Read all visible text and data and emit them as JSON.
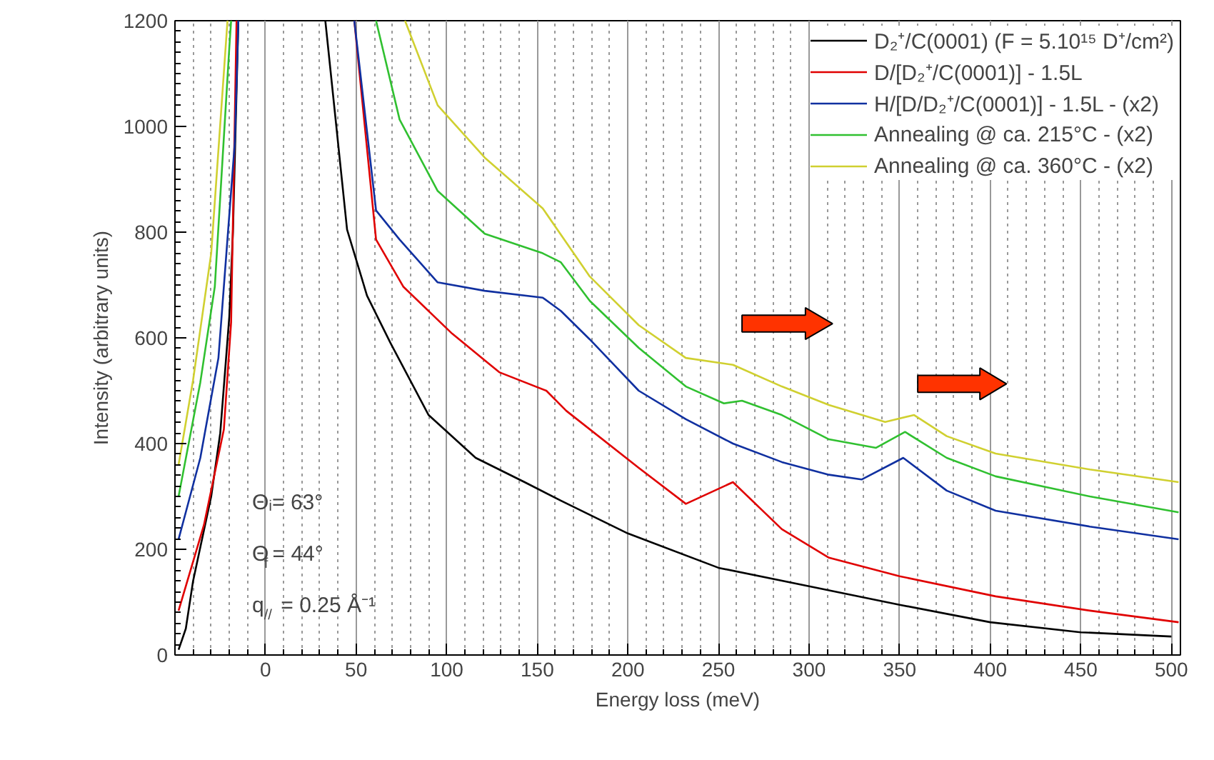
{
  "chart_data": {
    "type": "line",
    "xlabel": "Energy loss (meV)",
    "ylabel": "Intensity (arbitrary units)",
    "xlim": [
      -50,
      505
    ],
    "ylim": [
      0,
      1200
    ],
    "xticks": [
      0,
      50,
      100,
      150,
      200,
      250,
      300,
      350,
      400,
      450,
      500
    ],
    "yticks": [
      0,
      200,
      400,
      600,
      800,
      1000,
      1200
    ],
    "grid": "x",
    "legend": "top right",
    "line_style": "solid",
    "marker": "none",
    "annotations": [
      "Θᵢ= 63°",
      "Θ$_{f}$= 44°",
      "q$_{//}$ = 0.25 Å⁻¹"
    ],
    "series": [
      {
        "name": "D₂⁺/C(0001) (F = 5.10¹⁵ D⁺/cm²)",
        "color": "#000000",
        "x": [
          -48,
          -44,
          -40,
          -35,
          -30,
          -25,
          -20,
          -18,
          -15,
          0,
          33,
          45,
          56,
          69,
          90,
          116,
          143,
          163,
          200,
          250,
          300,
          350,
          400,
          450,
          500
        ],
        "values": [
          10,
          50,
          140,
          220,
          300,
          420,
          640,
          800,
          1200,
          null,
          1200,
          805,
          680,
          590,
          454,
          373,
          327,
          292,
          230,
          165,
          130,
          95,
          62,
          43,
          35
        ]
      },
      {
        "name": "D/[D₂⁺/C(0001)] - 1.5L",
        "color": "#e00000",
        "x": [
          -48,
          -34,
          -23,
          -19,
          -16,
          0,
          49,
          61,
          76,
          103,
          129,
          155,
          166,
          206,
          232,
          258,
          285,
          311,
          350,
          403,
          455,
          504
        ],
        "values": [
          84,
          246,
          427,
          630,
          1200,
          null,
          1200,
          786,
          697,
          608,
          535,
          500,
          462,
          354,
          286,
          327,
          238,
          184,
          149,
          111,
          84,
          62
        ]
      },
      {
        "name": "H/[D/D₂⁺/C(0001)] - 1.5L - (x2)",
        "color": "#1030a0",
        "x": [
          -48,
          -36,
          -26,
          -17,
          -15,
          0,
          49,
          61,
          74,
          95,
          121,
          153,
          163,
          179,
          206,
          232,
          258,
          285,
          311,
          329,
          352,
          376,
          403,
          455,
          504
        ],
        "values": [
          219,
          373,
          562,
          968,
          1200,
          null,
          1200,
          841,
          786,
          705,
          689,
          676,
          651,
          597,
          500,
          446,
          400,
          365,
          341,
          332,
          373,
          311,
          273,
          243,
          219
        ]
      },
      {
        "name": "Annealing @ ca. 215°C - (x2)",
        "color": "#30c030",
        "x": [
          -48,
          -36,
          -28,
          -20,
          -19,
          0,
          61,
          74,
          95,
          121,
          153,
          163,
          179,
          206,
          232,
          253,
          263,
          285,
          311,
          337,
          353,
          376,
          403,
          455,
          504
        ],
        "values": [
          300,
          516,
          697,
          1149,
          1200,
          null,
          1200,
          1013,
          878,
          797,
          760,
          743,
          670,
          581,
          508,
          476,
          481,
          454,
          408,
          392,
          422,
          373,
          338,
          300,
          270
        ]
      },
      {
        "name": "Annealing @ ca. 360°C - (x2)",
        "color": "#d0d030",
        "x": [
          -48,
          -40,
          -30,
          -21,
          0,
          77,
          95,
          121,
          153,
          179,
          206,
          232,
          258,
          285,
          311,
          342,
          358,
          376,
          403,
          455,
          504
        ],
        "values": [
          360,
          520,
          760,
          1200,
          null,
          1200,
          1040,
          941,
          845,
          716,
          624,
          562,
          549,
          508,
          473,
          441,
          454,
          414,
          381,
          351,
          327
        ]
      }
    ]
  }
}
